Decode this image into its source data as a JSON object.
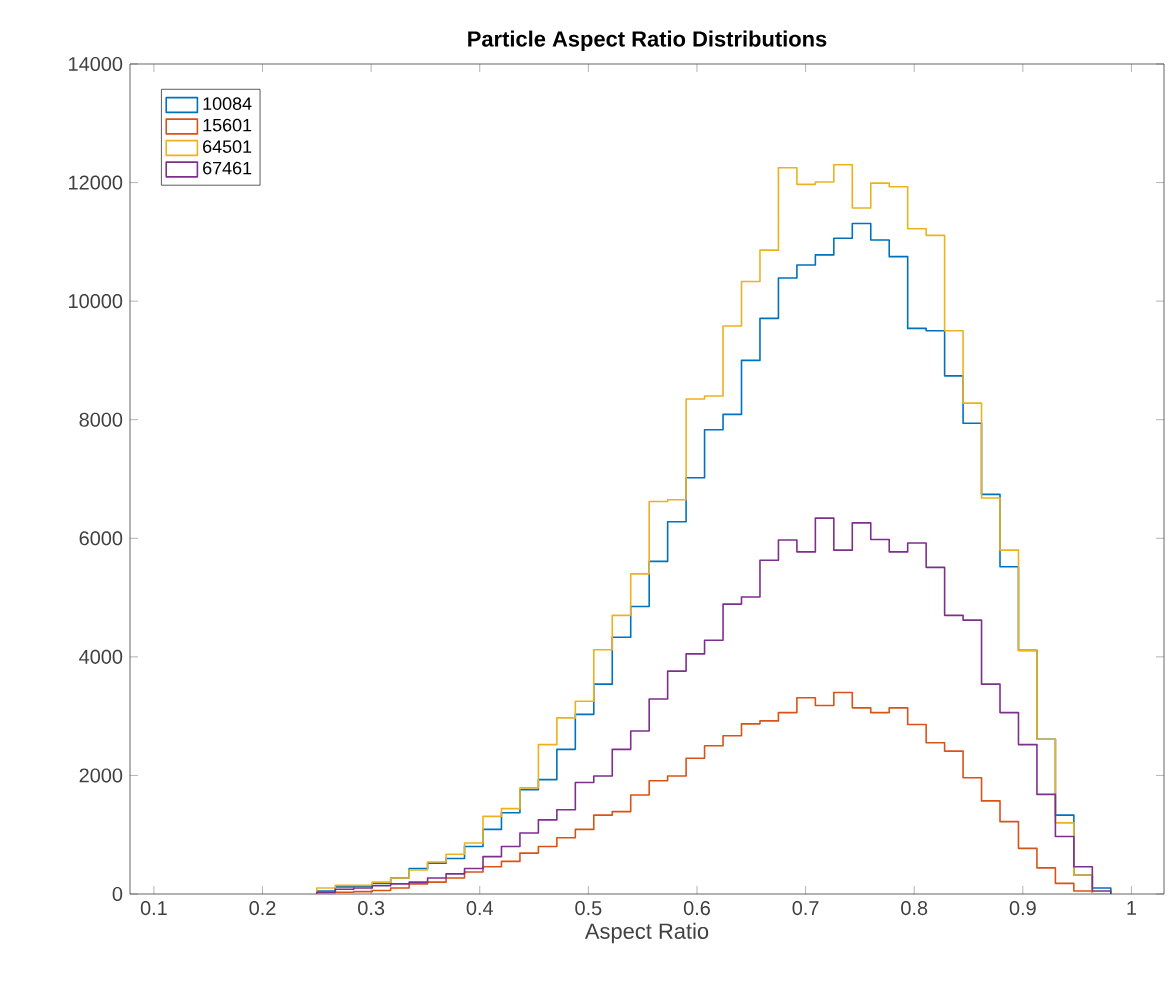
{
  "chart_data": {
    "type": "histogram",
    "title": "Particle Aspect Ratio Distributions",
    "xlabel": "Aspect Ratio",
    "bins": [
      0.25,
      0.267,
      0.284,
      0.301,
      0.318,
      0.335,
      0.352,
      0.369,
      0.386,
      0.403,
      0.42,
      0.437,
      0.454,
      0.471,
      0.488,
      0.505,
      0.522,
      0.539,
      0.556,
      0.573,
      0.59,
      0.607,
      0.624,
      0.641,
      0.658,
      0.675,
      0.692,
      0.709,
      0.726,
      0.743,
      0.76,
      0.777,
      0.794,
      0.811,
      0.828,
      0.845,
      0.862,
      0.879,
      0.896,
      0.913,
      0.93,
      0.947,
      0.964,
      0.981
    ],
    "series": [
      {
        "name": "10084",
        "color": "#0072bd",
        "values": [
          50,
          120,
          130,
          180,
          270,
          430,
          520,
          600,
          800,
          1090,
          1370,
          1760,
          1930,
          2440,
          3030,
          3540,
          4330,
          4850,
          5610,
          6280,
          7020,
          7830,
          8090,
          9000,
          9710,
          10390,
          10610,
          10780,
          11060,
          11310,
          11030,
          10750,
          9540,
          9500,
          8740,
          7940,
          6740,
          5520,
          4110,
          2610,
          1330,
          320,
          100
        ]
      },
      {
        "name": "15601",
        "color": "#d95319",
        "values": [
          20,
          30,
          40,
          60,
          100,
          170,
          200,
          270,
          370,
          460,
          550,
          690,
          800,
          950,
          1090,
          1330,
          1390,
          1670,
          1910,
          1990,
          2290,
          2500,
          2670,
          2870,
          2920,
          3060,
          3310,
          3180,
          3400,
          3140,
          3060,
          3140,
          2860,
          2550,
          2410,
          1960,
          1570,
          1220,
          770,
          440,
          180,
          50,
          0
        ]
      },
      {
        "name": "64501",
        "color": "#edb120",
        "values": [
          100,
          145,
          145,
          200,
          270,
          405,
          540,
          670,
          860,
          1310,
          1440,
          1790,
          2520,
          2970,
          3250,
          4120,
          4700,
          5400,
          6620,
          6650,
          8350,
          8400,
          9580,
          10330,
          10860,
          12250,
          11970,
          12010,
          12300,
          11570,
          11990,
          11930,
          11220,
          11110,
          9500,
          8280,
          6680,
          5800,
          4110,
          2610,
          1200,
          320,
          0
        ]
      },
      {
        "name": "67461",
        "color": "#7e2f8e",
        "values": [
          30,
          80,
          100,
          140,
          170,
          200,
          270,
          340,
          430,
          630,
          800,
          1030,
          1250,
          1420,
          1880,
          1990,
          2440,
          2750,
          3290,
          3760,
          4050,
          4280,
          4890,
          5010,
          5630,
          5970,
          5770,
          6340,
          5800,
          6260,
          5980,
          5770,
          5920,
          5510,
          4700,
          4620,
          3540,
          3060,
          2520,
          1680,
          970,
          460,
          50
        ]
      }
    ],
    "xlim": [
      0.078,
      1.03
    ],
    "ylim": [
      0,
      14000
    ],
    "xticks": [
      0.1,
      0.2,
      0.3,
      0.4,
      0.5,
      0.6,
      0.7,
      0.8,
      0.9,
      1
    ],
    "yticks": [
      0,
      2000,
      4000,
      6000,
      8000,
      10000,
      12000,
      14000
    ],
    "legend": "top left"
  }
}
